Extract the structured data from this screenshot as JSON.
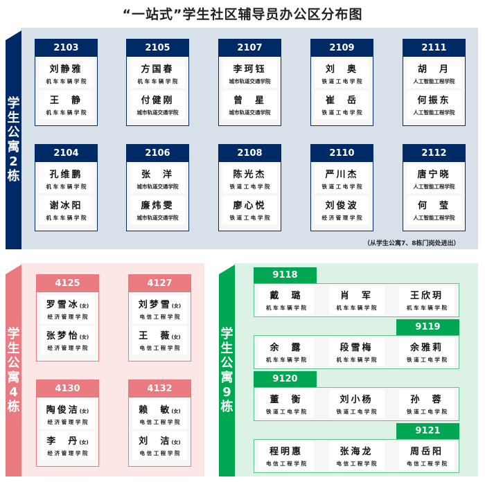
{
  "title": "“一站式”学生社区辅导员办公区分布图",
  "colors": {
    "building2": "#002a66",
    "building2_bg": "#d8e0ea",
    "building4": "#e87a80",
    "building4_bg": "#fde6e6",
    "building9": "#00a651",
    "building9_bg": "#dcf2e4"
  },
  "building2": {
    "label": "学生公寓2栋",
    "note": "（从学生公寓7、8栋门岗处进出）",
    "rooms": [
      {
        "room": "2103",
        "people": [
          {
            "name": "刘静雅",
            "college": "机 车 车 辆 学 院"
          },
          {
            "name": "王  静",
            "college": "机 车 车 辆 学 院"
          }
        ]
      },
      {
        "room": "2105",
        "people": [
          {
            "name": "方国春",
            "college": "机 车 车 辆 学 院"
          },
          {
            "name": "付健刚",
            "college": "城市轨道交通学院"
          }
        ]
      },
      {
        "room": "2107",
        "people": [
          {
            "name": "李珂钰",
            "college": "城市轨道交通学院"
          },
          {
            "name": "曾  星",
            "college": "城市轨道交通学院"
          }
        ]
      },
      {
        "room": "2109",
        "people": [
          {
            "name": "刘  奥",
            "college": "铁 道 工 电 学 院"
          },
          {
            "name": "崔  岳",
            "college": "铁 道 工 电 学 院"
          }
        ]
      },
      {
        "room": "2111",
        "people": [
          {
            "name": "胡  月",
            "college": "人工智能工程学院"
          },
          {
            "name": "何振东",
            "college": "人工智能工程学院"
          }
        ]
      },
      {
        "room": "2104",
        "people": [
          {
            "name": "孔维鹏",
            "college": "机 车 车 辆 学 院"
          },
          {
            "name": "谢冰阳",
            "college": "机 车 车 辆 学 院"
          }
        ]
      },
      {
        "room": "2106",
        "people": [
          {
            "name": "张  洋",
            "college": "城市轨道交通学院"
          },
          {
            "name": "廉炜雯",
            "college": "城市轨道交通学院"
          }
        ]
      },
      {
        "room": "2108",
        "people": [
          {
            "name": "陈光杰",
            "college": "铁 道 工 电 学 院"
          },
          {
            "name": "廖心悦",
            "college": "铁 道 工 电 学 院"
          }
        ]
      },
      {
        "room": "2110",
        "people": [
          {
            "name": "严川杰",
            "college": "铁 道 工 电 学 院"
          },
          {
            "name": "刘俊波",
            "college": "经 济 管 理 学 院"
          }
        ]
      },
      {
        "room": "2112",
        "people": [
          {
            "name": "唐宁晓",
            "college": "人工智能工程学院"
          },
          {
            "name": "何  莹",
            "college": "人工智能工程学院"
          }
        ]
      }
    ]
  },
  "building4": {
    "label": "学生公寓4栋",
    "female_mark": "(女)",
    "rooms": [
      {
        "room": "4125",
        "people": [
          {
            "name": "罗雪冰",
            "college": "经 济 管 理 学 院"
          },
          {
            "name": "张梦怡",
            "college": "经 济 管 理 学 院"
          }
        ]
      },
      {
        "room": "4127",
        "people": [
          {
            "name": "刘梦雪",
            "college": "电 信 工 程 学 院"
          },
          {
            "name": "王  薇",
            "college": "电 信 工 程 学 院"
          }
        ]
      },
      {
        "room": "4130",
        "people": [
          {
            "name": "陶俊洁",
            "college": "经 济 管 理 学 院"
          },
          {
            "name": "李  丹",
            "college": "经 济 管 理 学 院"
          }
        ]
      },
      {
        "room": "4132",
        "people": [
          {
            "name": "赖  敏",
            "college": "电 信 工 程 学 院"
          },
          {
            "name": "刘  洁",
            "college": "电 信 工 程 学 院"
          }
        ]
      }
    ]
  },
  "building9": {
    "label": "学生公寓9栋",
    "rooms": [
      {
        "room": "9118",
        "people": [
          {
            "name": "戴  璐",
            "college": "机 车 车 辆 学 院"
          },
          {
            "name": "肖  军",
            "college": "机 车 车 辆 学 院"
          },
          {
            "name": "王欣玥",
            "college": "机 车 车 辆 学 院"
          }
        ]
      },
      {
        "room": "9119",
        "people": [
          {
            "name": "余  露",
            "college": "机 车 车 辆 学 院"
          },
          {
            "name": "段雪梅",
            "college": "机 车 车 辆 学 院"
          },
          {
            "name": "余雅莉",
            "college": "铁 道 工 电 学 院"
          }
        ]
      },
      {
        "room": "9120",
        "people": [
          {
            "name": "董  衡",
            "college": "铁 道 工 电 学 院"
          },
          {
            "name": "刘小杨",
            "college": "铁 道 工 电 学 院"
          },
          {
            "name": "孙  蓉",
            "college": "铁 道 工 电 学 院"
          }
        ]
      },
      {
        "room": "9121",
        "people": [
          {
            "name": "程明惠",
            "college": "电 信 工 程 学 院"
          },
          {
            "name": "张海龙",
            "college": "电 信 工 程 学 院"
          },
          {
            "name": "周岳阳",
            "college": "电 信 工 程 学 院"
          }
        ]
      }
    ]
  }
}
